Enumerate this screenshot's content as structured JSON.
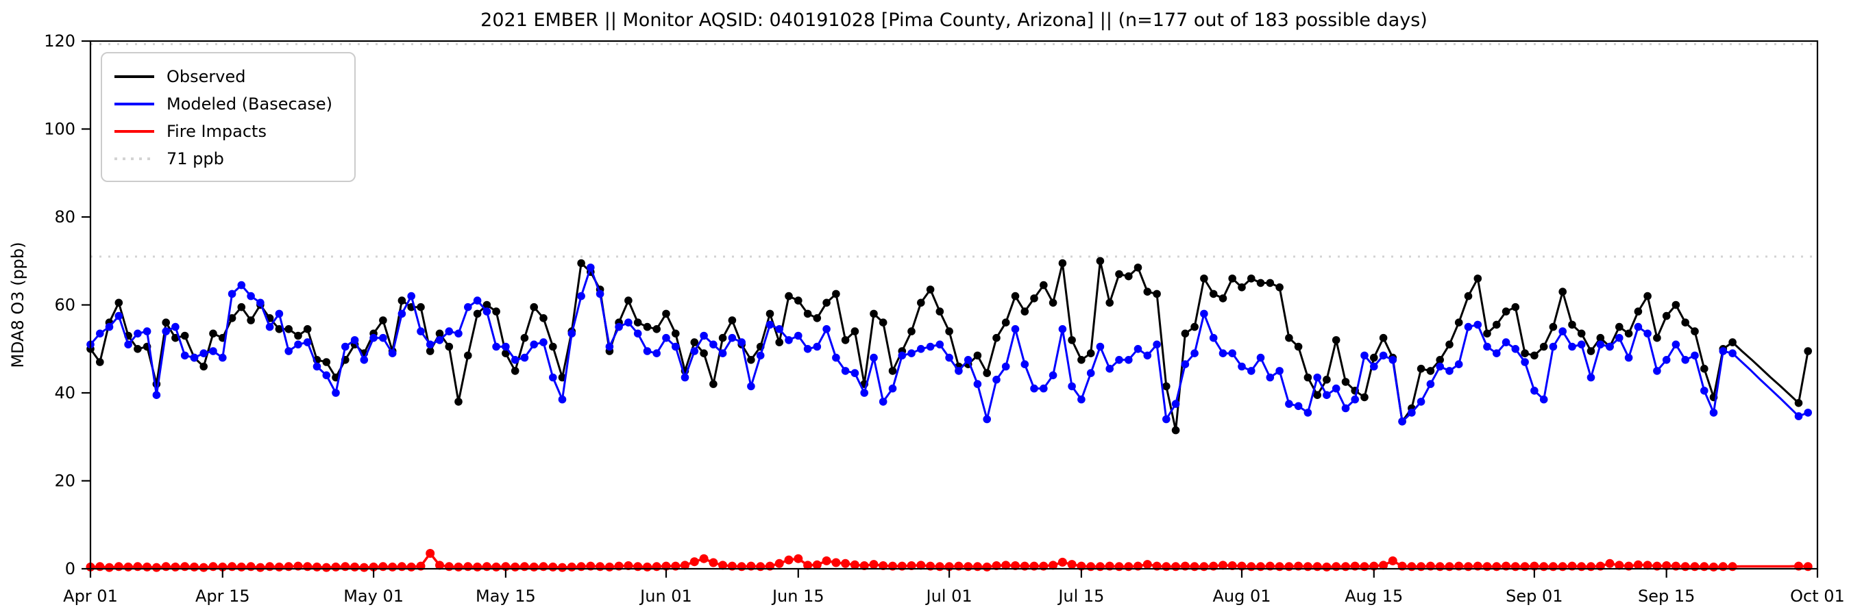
{
  "title": "2021 EMBER || Monitor AQSID: 040191028 [Pima County, Arizona] || (n=177 out of 183 possible days)",
  "chart_data": {
    "type": "line",
    "title": "2021 EMBER || Monitor AQSID: 040191028 [Pima County, Arizona] || (n=177 out of 183 possible days)",
    "n_note": "n=177 out of 183 possible days",
    "y_axis": {
      "label": "MDA8 O3 (ppb)",
      "ticks": [
        0,
        20,
        40,
        60,
        80,
        100,
        120
      ],
      "lim": [
        0,
        120
      ]
    },
    "x_axis": {
      "tick_labels": [
        "Apr 01",
        "Apr 15",
        "May 01",
        "May 15",
        "Jun 01",
        "Jun 15",
        "Jul 01",
        "Jul 15",
        "Aug 01",
        "Aug 15",
        "Sep 01",
        "Sep 15",
        "Oct 01"
      ],
      "tick_days": [
        0,
        14,
        30,
        44,
        61,
        75,
        91,
        105,
        122,
        136,
        153,
        167,
        183
      ],
      "range_days": [
        0,
        183
      ]
    },
    "grid": false,
    "legend_position": "upper left",
    "reference_lines": [
      {
        "label": "71 ppb",
        "value": 71,
        "color": "#d3d3d3",
        "style": "dotted"
      },
      {
        "label": "",
        "value": 119.3,
        "color": "#d3d3d3",
        "style": "dotted"
      }
    ],
    "missing_marker_days": [
      175,
      176,
      177,
      178,
      179,
      180
    ],
    "series": [
      {
        "name": "Observed",
        "color": "#000000",
        "marker": "circle",
        "values": [
          50,
          47,
          56,
          60.5,
          53,
          50,
          50.5,
          42,
          56,
          52.5,
          53,
          48,
          46,
          53.5,
          52.5,
          57,
          59.5,
          56.5,
          60,
          57,
          54.5,
          54.5,
          53,
          54.5,
          47.5,
          47,
          43.5,
          47.5,
          51,
          49,
          53.5,
          56.5,
          49.5,
          61,
          59.5,
          59.5,
          49.5,
          53.5,
          50.5,
          38,
          48.5,
          58,
          60,
          58.5,
          49,
          45,
          52.5,
          59.5,
          57,
          50.5,
          43.5,
          54,
          69.5,
          67.5,
          63.5,
          49.5,
          56,
          61,
          56,
          55,
          54.5,
          58,
          53.5,
          45,
          51.5,
          49,
          42,
          52.5,
          56.5,
          51,
          47.5,
          50.5,
          58,
          51.5,
          62,
          61,
          58,
          57,
          60.5,
          62.5,
          52,
          54,
          42,
          58,
          56,
          45,
          49.5,
          54,
          60.5,
          63.5,
          58.5,
          54,
          46,
          46.5,
          48.5,
          44.5,
          52.5,
          56,
          62,
          58.5,
          61.5,
          64.5,
          60.5,
          69.5,
          52,
          47.5,
          49,
          70,
          60.5,
          67,
          66.5,
          68.5,
          63,
          62.5,
          41.5,
          31.5,
          53.5,
          55,
          66,
          62.5,
          61.5,
          66,
          64,
          66,
          65,
          65,
          64,
          52.5,
          50.5,
          43.5,
          39.5,
          43,
          52,
          42.5,
          40.5,
          39,
          48,
          52.5,
          48,
          33.5,
          36.5,
          45.5,
          45,
          47.5,
          51,
          56,
          62,
          66,
          53.5,
          55.5,
          58.5,
          59.5,
          49,
          48.5,
          50.5,
          55,
          63,
          55.5,
          53.5,
          49.5,
          52.5,
          50.5,
          55,
          53.5,
          58.5,
          62,
          52.5,
          57.5,
          60,
          56,
          54,
          45.5,
          39,
          50,
          51.5,
          49.5,
          47.6,
          45.6,
          43.6,
          41.7,
          39.7,
          37.7,
          49.5
        ]
      },
      {
        "name": "Modeled (Basecase)",
        "color": "#0000ff",
        "marker": "circle",
        "values": [
          51,
          53.5,
          55,
          57.5,
          51,
          53.5,
          54,
          39.5,
          54,
          55,
          48.5,
          48,
          49,
          49.5,
          48,
          62.5,
          64.5,
          62,
          60.5,
          55,
          58,
          49.5,
          51,
          51.5,
          46,
          44,
          40,
          50.5,
          52,
          47.5,
          52.5,
          52.5,
          49,
          58,
          62,
          54,
          51,
          52,
          54,
          53.5,
          59.5,
          61,
          58.5,
          50.5,
          50.5,
          47.5,
          48,
          51,
          51.5,
          43.5,
          38.5,
          53.5,
          62,
          68.5,
          62.5,
          50.5,
          55,
          56,
          53.5,
          49.5,
          49,
          52.5,
          50.5,
          43.5,
          49.5,
          53,
          51,
          49,
          52.5,
          51.5,
          41.5,
          48.5,
          55.5,
          54.5,
          52,
          53,
          50,
          50.5,
          54.5,
          48,
          45,
          44.5,
          40,
          48,
          38,
          41,
          48.5,
          49,
          50,
          50.5,
          51,
          48,
          45,
          47.5,
          42,
          34,
          43,
          46,
          54.5,
          46.5,
          41,
          41,
          44,
          54.5,
          41.5,
          38.5,
          44.5,
          50.5,
          45.5,
          47.5,
          47.5,
          50,
          48.5,
          51,
          34,
          37.5,
          46.5,
          49,
          58,
          52.5,
          49,
          49,
          46,
          45,
          48,
          43.5,
          45,
          37.5,
          37,
          35.5,
          43.5,
          39.5,
          41,
          36.5,
          38.5,
          48.5,
          46,
          48.5,
          47.5,
          33.5,
          35.5,
          38,
          42,
          46,
          45,
          46.5,
          55,
          55.5,
          50.5,
          49,
          51.5,
          50,
          47,
          40.5,
          38.5,
          50.5,
          54,
          50.5,
          51,
          43.5,
          51,
          50.5,
          52.5,
          48,
          55,
          53.5,
          45,
          47.5,
          51,
          47.5,
          48.5,
          40.5,
          35.5,
          49.5,
          49,
          47,
          45,
          42.9,
          40.9,
          38.9,
          36.8,
          34.7,
          35.5
        ]
      },
      {
        "name": "Fire Impacts",
        "color": "#ff0000",
        "marker": "circle",
        "values": [
          0.4,
          0.5,
          0.3,
          0.5,
          0.4,
          0.5,
          0.4,
          0.3,
          0.5,
          0.4,
          0.5,
          0.4,
          0.3,
          0.5,
          0.4,
          0.5,
          0.4,
          0.5,
          0.3,
          0.5,
          0.4,
          0.5,
          0.6,
          0.5,
          0.4,
          0.3,
          0.4,
          0.5,
          0.4,
          0.3,
          0.4,
          0.5,
          0.4,
          0.5,
          0.4,
          0.6,
          3.5,
          0.8,
          0.5,
          0.4,
          0.5,
          0.4,
          0.5,
          0.4,
          0.5,
          0.4,
          0.5,
          0.4,
          0.5,
          0.4,
          0.3,
          0.4,
          0.5,
          0.6,
          0.5,
          0.4,
          0.6,
          0.7,
          0.5,
          0.4,
          0.5,
          0.6,
          0.6,
          0.8,
          1.6,
          2.3,
          1.4,
          0.8,
          0.6,
          0.5,
          0.6,
          0.5,
          0.6,
          1.2,
          2.0,
          2.3,
          0.8,
          0.9,
          1.8,
          1.4,
          1.2,
          0.9,
          0.7,
          1.0,
          0.7,
          0.6,
          0.6,
          0.7,
          0.8,
          0.6,
          0.5,
          0.5,
          0.6,
          0.5,
          0.5,
          0.4,
          0.7,
          0.8,
          0.7,
          0.6,
          0.6,
          0.6,
          0.8,
          1.5,
          1.0,
          0.6,
          0.5,
          0.5,
          0.6,
          0.5,
          0.5,
          0.6,
          1.0,
          0.6,
          0.5,
          0.5,
          0.6,
          0.5,
          0.5,
          0.6,
          0.8,
          0.7,
          0.6,
          0.5,
          0.5,
          0.6,
          0.5,
          0.5,
          0.6,
          0.5,
          0.5,
          0.4,
          0.5,
          0.5,
          0.6,
          0.5,
          0.6,
          0.8,
          1.8,
          0.6,
          0.5,
          0.5,
          0.6,
          0.5,
          0.5,
          0.6,
          0.5,
          0.6,
          0.5,
          0.5,
          0.6,
          0.5,
          0.5,
          0.6,
          0.5,
          0.5,
          0.5,
          0.6,
          0.5,
          0.5,
          0.6,
          1.2,
          0.8,
          0.6,
          0.9,
          0.8,
          0.6,
          0.7,
          0.6,
          0.5,
          0.5,
          0.5,
          0.4,
          0.5,
          0.5,
          0.55,
          0.55,
          0.55,
          0.55,
          0.55,
          0.55,
          0.6,
          0.5
        ]
      }
    ]
  }
}
